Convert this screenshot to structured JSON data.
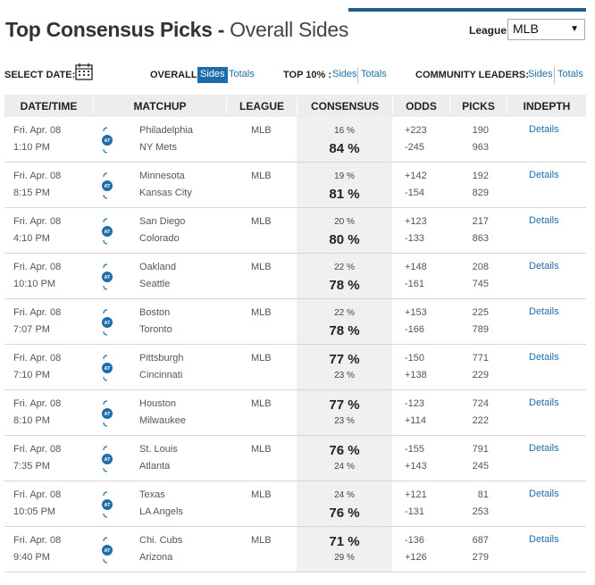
{
  "header": {
    "title_bold": "Top Consensus Picks -",
    "title_rest": "Overall Sides",
    "league_label": "League:",
    "league_value": "MLB"
  },
  "filters": {
    "select_date": "SELECT DATE:",
    "overall_label": "OVERALL:",
    "overall_sides": "Sides",
    "overall_totals": "Totals",
    "top10_label": "TOP 10% :",
    "top10_sides": "Sides",
    "top10_totals": "Totals",
    "community_label": "COMMUNITY LEADERS:",
    "community_sides": "Sides",
    "community_totals": "Totals"
  },
  "columns": [
    "DATE/TIME",
    "MATCHUP",
    "LEAGUE",
    "CONSENSUS",
    "ODDS",
    "PICKS",
    "INDEPTH"
  ],
  "rows": [
    {
      "date": "Fri. Apr. 08",
      "time": "1:10 PM",
      "team1": "Philadelphia",
      "team2": "NY Mets",
      "league": "MLB",
      "cons1": "16 %",
      "cons2": "84 %",
      "pick": 2,
      "odds1": "+223",
      "odds2": "-245",
      "picks1": "190",
      "picks2": "963",
      "indepth": "Details"
    },
    {
      "date": "Fri. Apr. 08",
      "time": "8:15 PM",
      "team1": "Minnesota",
      "team2": "Kansas City",
      "league": "MLB",
      "cons1": "19 %",
      "cons2": "81 %",
      "pick": 2,
      "odds1": "+142",
      "odds2": "-154",
      "picks1": "192",
      "picks2": "829",
      "indepth": "Details"
    },
    {
      "date": "Fri. Apr. 08",
      "time": "4:10 PM",
      "team1": "San Diego",
      "team2": "Colorado",
      "league": "MLB",
      "cons1": "20 %",
      "cons2": "80 %",
      "pick": 2,
      "odds1": "+123",
      "odds2": "-133",
      "picks1": "217",
      "picks2": "863",
      "indepth": "Details"
    },
    {
      "date": "Fri. Apr. 08",
      "time": "10:10 PM",
      "team1": "Oakland",
      "team2": "Seattle",
      "league": "MLB",
      "cons1": "22 %",
      "cons2": "78 %",
      "pick": 2,
      "odds1": "+148",
      "odds2": "-161",
      "picks1": "208",
      "picks2": "745",
      "indepth": "Details"
    },
    {
      "date": "Fri. Apr. 08",
      "time": "7:07 PM",
      "team1": "Boston",
      "team2": "Toronto",
      "league": "MLB",
      "cons1": "22 %",
      "cons2": "78 %",
      "pick": 2,
      "odds1": "+153",
      "odds2": "-166",
      "picks1": "225",
      "picks2": "789",
      "indepth": "Details"
    },
    {
      "date": "Fri. Apr. 08",
      "time": "7:10 PM",
      "team1": "Pittsburgh",
      "team2": "Cincinnati",
      "league": "MLB",
      "cons1": "77 %",
      "cons2": "23 %",
      "pick": 1,
      "odds1": "-150",
      "odds2": "+138",
      "picks1": "771",
      "picks2": "229",
      "indepth": "Details"
    },
    {
      "date": "Fri. Apr. 08",
      "time": "8:10 PM",
      "team1": "Houston",
      "team2": "Milwaukee",
      "league": "MLB",
      "cons1": "77 %",
      "cons2": "23 %",
      "pick": 1,
      "odds1": "-123",
      "odds2": "+114",
      "picks1": "724",
      "picks2": "222",
      "indepth": "Details"
    },
    {
      "date": "Fri. Apr. 08",
      "time": "7:35 PM",
      "team1": "St. Louis",
      "team2": "Atlanta",
      "league": "MLB",
      "cons1": "76 %",
      "cons2": "24 %",
      "pick": 1,
      "odds1": "-155",
      "odds2": "+143",
      "picks1": "791",
      "picks2": "245",
      "indepth": "Details"
    },
    {
      "date": "Fri. Apr. 08",
      "time": "10:05 PM",
      "team1": "Texas",
      "team2": "LA Angels",
      "league": "MLB",
      "cons1": "24 %",
      "cons2": "76 %",
      "pick": 2,
      "odds1": "+121",
      "odds2": "-131",
      "picks1": "81",
      "picks2": "253",
      "indepth": "Details"
    },
    {
      "date": "Fri. Apr. 08",
      "time": "9:40 PM",
      "team1": "Chi. Cubs",
      "team2": "Arizona",
      "league": "MLB",
      "cons1": "71 %",
      "cons2": "29 %",
      "pick": 1,
      "odds1": "-136",
      "odds2": "+126",
      "picks1": "687",
      "picks2": "279",
      "indepth": "Details"
    }
  ],
  "colors": {
    "accent": "#1d6ea8",
    "rule": "#1d5c8a",
    "header_bg": "#ededed",
    "consensus_bg": "#f0f0f0"
  }
}
